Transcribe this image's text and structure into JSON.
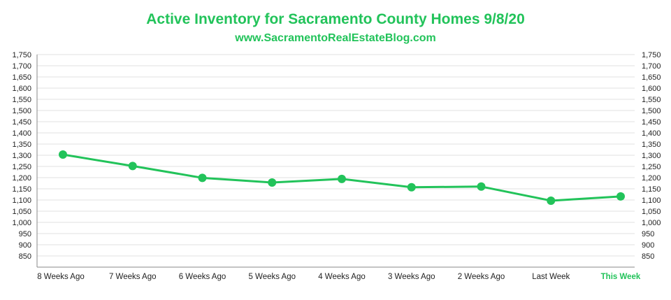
{
  "chart_data": {
    "type": "line",
    "title": "Active Inventory for Sacramento County Homes 9/8/20",
    "subtitle": "www.SacramentoRealEstateBlog.com",
    "categories": [
      "8 Weeks Ago",
      "7 Weeks Ago",
      "6 Weeks Ago",
      "5 Weeks Ago",
      "4 Weeks Ago",
      "3 Weeks Ago",
      "2 Weeks Ago",
      "Last Week",
      "This Week"
    ],
    "highlight_category": "This Week",
    "series": [
      {
        "name": "Active Inventory",
        "values": [
          1303,
          1252,
          1199,
          1178,
          1194,
          1157,
          1160,
          1097,
          1116
        ]
      }
    ],
    "yticks": [
      1750,
      1700,
      1650,
      1600,
      1550,
      1500,
      1450,
      1400,
      1350,
      1300,
      1250,
      1200,
      1150,
      1100,
      1050,
      1000,
      950,
      900,
      850
    ],
    "ylim": [
      800,
      1750
    ],
    "xlabel": "",
    "ylabel": "",
    "grid": true,
    "colors": {
      "line": "#22c35a",
      "title": "#22c35a",
      "grid": "#e2e2e2",
      "axis": "#888888"
    }
  }
}
